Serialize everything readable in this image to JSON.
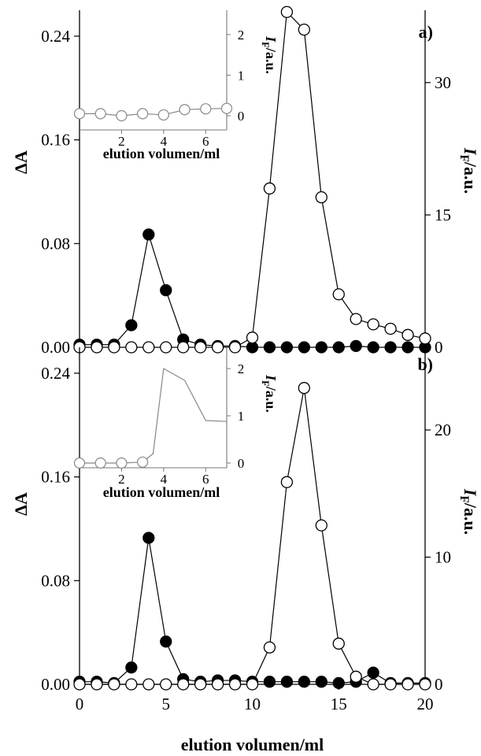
{
  "chart_data": [
    {
      "panel": "a)",
      "type": "line",
      "x_axis": {
        "xlim": [
          0,
          20
        ]
      },
      "left_axis": {
        "label": "ΔA",
        "ylim": [
          0,
          0.26
        ],
        "ticks": [
          "0.00",
          "0.08",
          "0.16",
          "0.24"
        ]
      },
      "right_axis": {
        "label_italic": "I",
        "label_sub": "F",
        "label_rest": "/a.u.",
        "ylim": [
          0,
          38.2
        ],
        "ticks": [
          "0",
          "15",
          "30"
        ]
      },
      "series": [
        {
          "marker": "filled",
          "axis": "left",
          "x": [
            0,
            1,
            2,
            3,
            4,
            5,
            6,
            7,
            8,
            9,
            10,
            11,
            12,
            13,
            14,
            15,
            16,
            17,
            18,
            19,
            20
          ],
          "y": [
            0.002,
            0.002,
            0.002,
            0.017,
            0.087,
            0.044,
            0.006,
            0.002,
            0.001,
            0.001,
            0,
            0,
            0,
            0,
            0,
            0,
            0.001,
            0,
            0,
            0,
            0
          ]
        },
        {
          "marker": "open",
          "axis": "right",
          "x": [
            0,
            1,
            2,
            3,
            4,
            5,
            6,
            7,
            8,
            9,
            10,
            11,
            12,
            13,
            14,
            15,
            16,
            17,
            18,
            19,
            20
          ],
          "y": [
            0,
            0,
            0,
            0,
            0,
            0,
            0,
            0,
            0,
            0,
            1.1,
            18,
            38,
            36,
            17,
            6,
            3.2,
            2.6,
            2.1,
            1.4,
            1.0
          ]
        }
      ],
      "inset": {
        "xlabel": "elution volumen/ml",
        "xlim": [
          0,
          7
        ],
        "xticks": [
          "2",
          "4",
          "6"
        ],
        "ylabel_italic": "I",
        "ylabel_sub": "F",
        "ylabel_rest": "/a.u.",
        "ylim": [
          -0.35,
          2.6
        ],
        "yticks": [
          "0",
          "1",
          "2"
        ],
        "series": {
          "marker": "open",
          "x": [
            0,
            1,
            2,
            3,
            4,
            5,
            6,
            7
          ],
          "y": [
            0.05,
            0.05,
            0.0,
            0.05,
            0.02,
            0.15,
            0.17,
            0.18
          ]
        }
      }
    },
    {
      "panel": "b)",
      "type": "line",
      "x_axis": {
        "label": "elution volumen/ml",
        "xlim": [
          0,
          20
        ],
        "ticks": [
          "0",
          "5",
          "10",
          "15",
          "20"
        ]
      },
      "left_axis": {
        "label": "ΔA",
        "ylim": [
          0,
          0.26
        ],
        "ticks": [
          "0.00",
          "0.08",
          "0.16",
          "0.24"
        ]
      },
      "right_axis": {
        "label_italic": "I",
        "label_sub": "F",
        "label_rest": "/a.u.",
        "ylim": [
          0,
          26.5
        ],
        "ticks": [
          "0",
          "10",
          "20"
        ]
      },
      "series": [
        {
          "marker": "filled",
          "axis": "left",
          "x": [
            0,
            1,
            2,
            3,
            4,
            5,
            6,
            7,
            8,
            9,
            10,
            11,
            12,
            13,
            14,
            15,
            16,
            17,
            18,
            19,
            20
          ],
          "y": [
            0.002,
            0.002,
            0.001,
            0.013,
            0.113,
            0.033,
            0.004,
            0.002,
            0.003,
            0.003,
            0.002,
            0.002,
            0.002,
            0.002,
            0.002,
            0.001,
            0.002,
            0.009,
            0.001,
            0.001,
            0.001
          ]
        },
        {
          "marker": "open",
          "axis": "right",
          "x": [
            0,
            1,
            2,
            3,
            4,
            5,
            6,
            7,
            8,
            9,
            10,
            11,
            12,
            13,
            14,
            15,
            16,
            17,
            18,
            19,
            20
          ],
          "y": [
            0,
            0,
            0,
            0,
            0,
            0,
            0,
            0,
            0,
            0,
            0,
            2.9,
            15.9,
            23.3,
            12.5,
            3.2,
            0.6,
            0,
            0,
            0,
            0
          ]
        }
      ],
      "inset": {
        "xlabel": "elution volumen/ml",
        "xlim": [
          0,
          7
        ],
        "xticks": [
          "2",
          "4",
          "6"
        ],
        "ylabel_italic": "I",
        "ylabel_sub": "F",
        "ylabel_rest": "/a.u.",
        "ylim": [
          -0.1,
          2.45
        ],
        "yticks": [
          "0",
          "1",
          "2"
        ],
        "series": {
          "marker": "open",
          "x": [
            0,
            1,
            2,
            3,
            3.5,
            4,
            5,
            6,
            7
          ],
          "y": [
            0,
            0,
            0,
            0.02,
            0.2,
            2.0,
            1.75,
            0.9,
            0.88
          ]
        }
      }
    }
  ]
}
